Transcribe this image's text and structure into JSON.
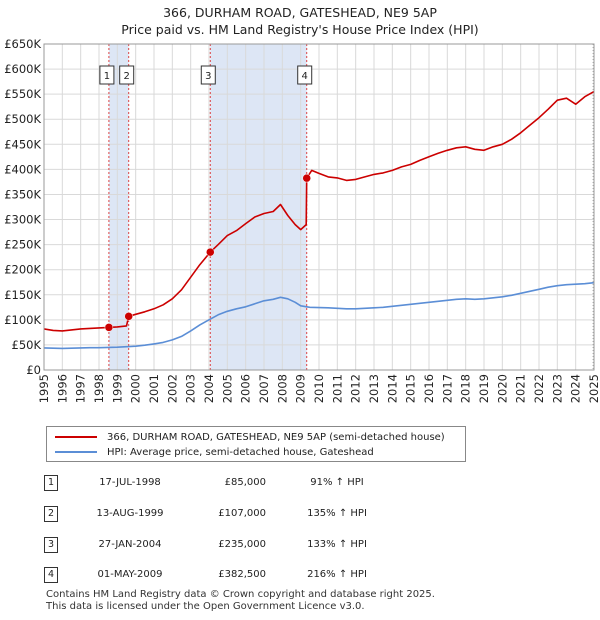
{
  "title": {
    "line1": "366, DURHAM ROAD, GATESHEAD, NE9 5AP",
    "line2": "Price paid vs. HM Land Registry's House Price Index (HPI)"
  },
  "colors": {
    "property": "#cc0000",
    "hpi": "#5b8ed6",
    "shade": "#dde6f5",
    "grid": "#d9d9d9"
  },
  "chart_data": {
    "type": "line",
    "title": "Price paid vs. HM Land Registry's House Price Index (HPI)",
    "xlim": [
      1995,
      2025
    ],
    "ylim": [
      0,
      650000
    ],
    "x_ticks": [
      "1995",
      "1996",
      "1997",
      "1998",
      "1999",
      "2000",
      "2001",
      "2002",
      "2003",
      "2004",
      "2005",
      "2006",
      "2007",
      "2008",
      "2009",
      "2010",
      "2011",
      "2012",
      "2013",
      "2014",
      "2015",
      "2016",
      "2017",
      "2018",
      "2019",
      "2020",
      "2021",
      "2022",
      "2023",
      "2024",
      "2025"
    ],
    "y_ticks": [
      {
        "value": 0,
        "label": "£0"
      },
      {
        "value": 50000,
        "label": "£50K"
      },
      {
        "value": 100000,
        "label": "£100K"
      },
      {
        "value": 150000,
        "label": "£150K"
      },
      {
        "value": 200000,
        "label": "£200K"
      },
      {
        "value": 250000,
        "label": "£250K"
      },
      {
        "value": 300000,
        "label": "£300K"
      },
      {
        "value": 350000,
        "label": "£350K"
      },
      {
        "value": 400000,
        "label": "£400K"
      },
      {
        "value": 450000,
        "label": "£450K"
      },
      {
        "value": 500000,
        "label": "£500K"
      },
      {
        "value": 550000,
        "label": "£550K"
      },
      {
        "value": 600000,
        "label": "£600K"
      },
      {
        "value": 650000,
        "label": "£650K"
      }
    ],
    "shaded_ranges": [
      [
        1998.54,
        1999.62
      ],
      [
        2004.07,
        2009.33
      ]
    ],
    "series": [
      {
        "name": "366, DURHAM ROAD, GATESHEAD, NE9 5AP (semi-detached house)",
        "color": "#cc0000",
        "x": [
          1995.0,
          1995.5,
          1996.0,
          1996.5,
          1997.0,
          1997.5,
          1998.0,
          1998.54,
          1999.0,
          1999.5,
          1999.62,
          2000.0,
          2000.5,
          2001.0,
          2001.5,
          2002.0,
          2002.5,
          2003.0,
          2003.5,
          2004.07,
          2004.5,
          2005.0,
          2005.5,
          2006.0,
          2006.5,
          2007.0,
          2007.5,
          2007.9,
          2008.3,
          2008.7,
          2009.0,
          2009.3,
          2009.33,
          2009.6,
          2010.0,
          2010.5,
          2011.0,
          2011.5,
          2012.0,
          2012.5,
          2013.0,
          2013.5,
          2014.0,
          2014.5,
          2015.0,
          2015.5,
          2016.0,
          2016.5,
          2017.0,
          2017.5,
          2018.0,
          2018.5,
          2019.0,
          2019.5,
          2020.0,
          2020.5,
          2021.0,
          2021.5,
          2022.0,
          2022.5,
          2023.0,
          2023.5,
          2024.0,
          2024.5,
          2025.0
        ],
        "y": [
          82000,
          79000,
          78000,
          80000,
          82000,
          83000,
          84000,
          85000,
          86000,
          88000,
          107000,
          111000,
          116000,
          122000,
          130000,
          142000,
          160000,
          185000,
          210000,
          235000,
          250000,
          268000,
          278000,
          292000,
          305000,
          312000,
          316000,
          330000,
          308000,
          290000,
          280000,
          290000,
          382500,
          398000,
          392000,
          385000,
          383000,
          378000,
          380000,
          385000,
          390000,
          393000,
          398000,
          405000,
          410000,
          418000,
          425000,
          432000,
          438000,
          443000,
          445000,
          440000,
          438000,
          445000,
          450000,
          460000,
          473000,
          488000,
          503000,
          520000,
          538000,
          542000,
          530000,
          545000,
          555000
        ]
      },
      {
        "name": "HPI: Average price, semi-detached house, Gateshead",
        "color": "#5b8ed6",
        "x": [
          1995.0,
          1995.5,
          1996.0,
          1996.5,
          1997.0,
          1997.5,
          1998.0,
          1998.5,
          1999.0,
          1999.5,
          2000.0,
          2000.5,
          2001.0,
          2001.5,
          2002.0,
          2002.5,
          2003.0,
          2003.5,
          2004.0,
          2004.5,
          2005.0,
          2005.5,
          2006.0,
          2006.5,
          2007.0,
          2007.5,
          2007.9,
          2008.3,
          2008.7,
          2009.0,
          2009.5,
          2010.0,
          2010.5,
          2011.0,
          2011.5,
          2012.0,
          2012.5,
          2013.0,
          2013.5,
          2014.0,
          2014.5,
          2015.0,
          2015.5,
          2016.0,
          2016.5,
          2017.0,
          2017.5,
          2018.0,
          2018.5,
          2019.0,
          2019.5,
          2020.0,
          2020.5,
          2021.0,
          2021.5,
          2022.0,
          2022.5,
          2023.0,
          2023.5,
          2024.0,
          2024.5,
          2025.0
        ],
        "y": [
          44000,
          43500,
          43000,
          43500,
          44000,
          44500,
          44500,
          45000,
          45500,
          46500,
          47500,
          49500,
          52000,
          55000,
          60000,
          67000,
          78000,
          90000,
          100000,
          110000,
          117000,
          122000,
          126000,
          132000,
          138000,
          141000,
          145000,
          142000,
          135000,
          128000,
          125000,
          124500,
          124000,
          123000,
          122000,
          122000,
          123000,
          124000,
          125000,
          127000,
          129000,
          131000,
          133000,
          135000,
          137000,
          139000,
          141000,
          142000,
          141000,
          142000,
          144000,
          146000,
          149000,
          153000,
          157000,
          161000,
          165000,
          168000,
          170000,
          171000,
          172000,
          174000
        ]
      }
    ],
    "markers": [
      {
        "label": "1",
        "x": 1998.54,
        "y": 85000
      },
      {
        "label": "2",
        "x": 1999.62,
        "y": 107000
      },
      {
        "label": "3",
        "x": 2004.07,
        "y": 235000
      },
      {
        "label": "4",
        "x": 2009.33,
        "y": 382500
      }
    ]
  },
  "legend": {
    "property_label": "366, DURHAM ROAD, GATESHEAD, NE9 5AP (semi-detached house)",
    "hpi_label": "HPI: Average price, semi-detached house, Gateshead"
  },
  "transactions": [
    {
      "num": "1",
      "date": "17-JUL-1998",
      "price": "£85,000",
      "hpi": "91% ↑ HPI"
    },
    {
      "num": "2",
      "date": "13-AUG-1999",
      "price": "£107,000",
      "hpi": "135% ↑ HPI"
    },
    {
      "num": "3",
      "date": "27-JAN-2004",
      "price": "£235,000",
      "hpi": "133% ↑ HPI"
    },
    {
      "num": "4",
      "date": "01-MAY-2009",
      "price": "£382,500",
      "hpi": "216% ↑ HPI"
    }
  ],
  "footer": {
    "line1": "Contains HM Land Registry data © Crown copyright and database right 2025.",
    "line2": "This data is licensed under the Open Government Licence v3.0."
  }
}
